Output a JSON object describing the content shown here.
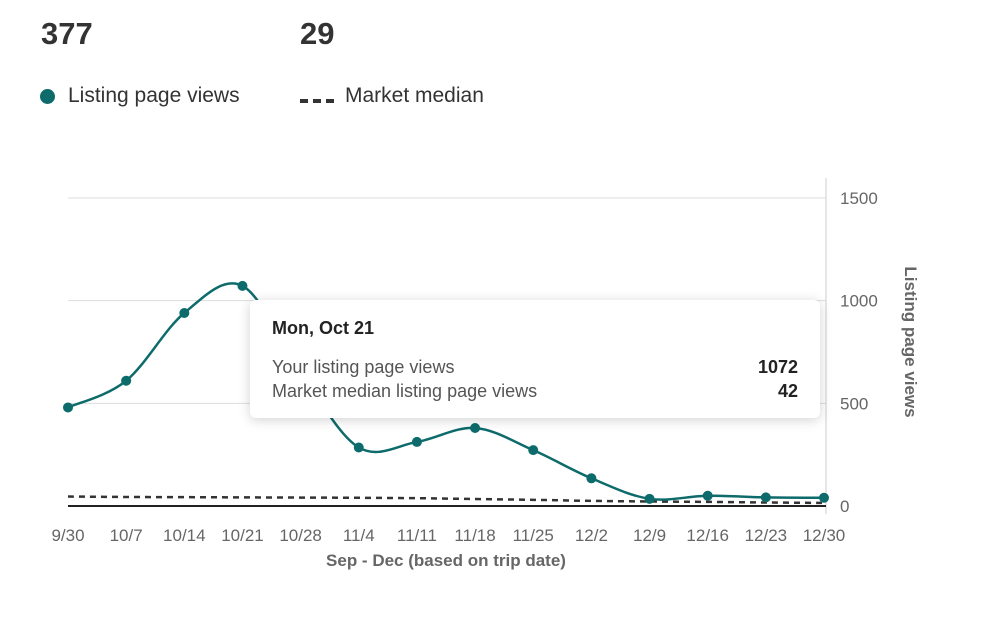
{
  "stats": [
    {
      "value": "377"
    },
    {
      "value": "29"
    }
  ],
  "legend": {
    "views_label": "Listing page views",
    "median_label": "Market median"
  },
  "tooltip": {
    "title": "Mon, Oct 21",
    "rows": [
      {
        "label": "Your listing page views",
        "value": "1072"
      },
      {
        "label": "Market median listing page views",
        "value": "42"
      }
    ]
  },
  "colors": {
    "views": "#0e6b6b",
    "median": "#333333",
    "grid": "#dddddd",
    "axis": "#666666"
  },
  "chart_data": {
    "type": "line",
    "categories": [
      "9/30",
      "10/7",
      "10/14",
      "10/21",
      "10/28",
      "11/4",
      "11/11",
      "11/18",
      "11/25",
      "12/2",
      "12/9",
      "12/16",
      "12/23",
      "12/30"
    ],
    "series": [
      {
        "name": "Listing page views",
        "values": [
          480,
          610,
          940,
          1072,
          650,
          285,
          312,
          380,
          272,
          135,
          35,
          50,
          42,
          40
        ]
      },
      {
        "name": "Market median",
        "values": [
          46,
          44,
          43,
          42,
          41,
          40,
          38,
          34,
          30,
          25,
          22,
          20,
          17,
          15
        ]
      }
    ],
    "xlabel": "Sep - Dec (based on trip date)",
    "ylabel": "Listing page views",
    "yticks": [
      0,
      500,
      1000,
      1500
    ],
    "ylim": [
      0,
      1500
    ],
    "y_axis_position": "right",
    "grid": true
  }
}
